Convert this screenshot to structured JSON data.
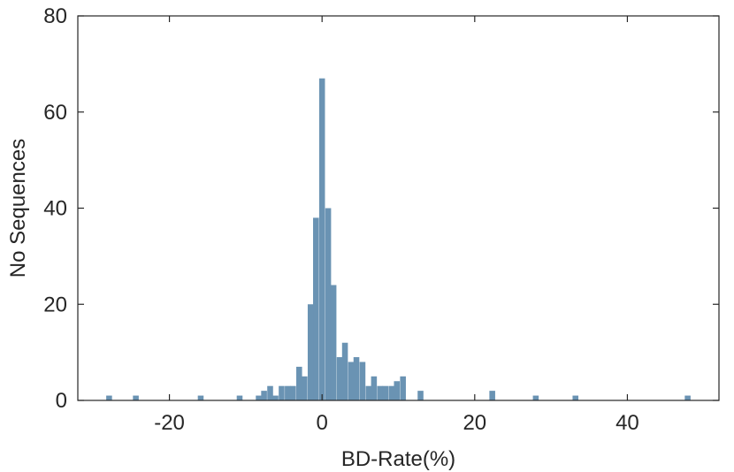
{
  "chart_data": {
    "type": "bar",
    "subtype": "histogram",
    "title": "",
    "xlabel": "BD-Rate(%)",
    "ylabel": "No Sequences",
    "xlim": [
      -32,
      52
    ],
    "ylim": [
      0,
      80
    ],
    "xticks": [
      -20,
      0,
      20,
      40
    ],
    "xtick_labels": [
      "-20",
      "0",
      "20",
      "40"
    ],
    "yticks": [
      0,
      20,
      40,
      60,
      80
    ],
    "ytick_labels": [
      "0",
      "20",
      "40",
      "60",
      "80"
    ],
    "grid": false,
    "legend": "none",
    "bar_color": "#6a93b3",
    "bin_width": 0.76,
    "bins": [
      {
        "x": -27.9,
        "count": 1
      },
      {
        "x": -24.4,
        "count": 1
      },
      {
        "x": -15.9,
        "count": 1
      },
      {
        "x": -10.8,
        "count": 1
      },
      {
        "x": -8.3,
        "count": 1
      },
      {
        "x": -7.6,
        "count": 2
      },
      {
        "x": -6.8,
        "count": 3
      },
      {
        "x": -6.1,
        "count": 1
      },
      {
        "x": -5.3,
        "count": 3
      },
      {
        "x": -4.5,
        "count": 3
      },
      {
        "x": -3.8,
        "count": 3
      },
      {
        "x": -3.0,
        "count": 7
      },
      {
        "x": -2.3,
        "count": 5
      },
      {
        "x": -1.5,
        "count": 20
      },
      {
        "x": -0.8,
        "count": 38
      },
      {
        "x": 0.0,
        "count": 67
      },
      {
        "x": 0.8,
        "count": 40
      },
      {
        "x": 1.5,
        "count": 24
      },
      {
        "x": 2.3,
        "count": 9
      },
      {
        "x": 3.0,
        "count": 12
      },
      {
        "x": 3.8,
        "count": 8
      },
      {
        "x": 4.5,
        "count": 9
      },
      {
        "x": 5.3,
        "count": 8
      },
      {
        "x": 6.1,
        "count": 3
      },
      {
        "x": 6.8,
        "count": 5
      },
      {
        "x": 7.6,
        "count": 3
      },
      {
        "x": 8.3,
        "count": 3
      },
      {
        "x": 9.1,
        "count": 3
      },
      {
        "x": 9.8,
        "count": 4
      },
      {
        "x": 10.6,
        "count": 5
      },
      {
        "x": 12.9,
        "count": 2
      },
      {
        "x": 22.3,
        "count": 2
      },
      {
        "x": 28.0,
        "count": 1
      },
      {
        "x": 33.2,
        "count": 1
      },
      {
        "x": 47.9,
        "count": 1
      }
    ]
  }
}
